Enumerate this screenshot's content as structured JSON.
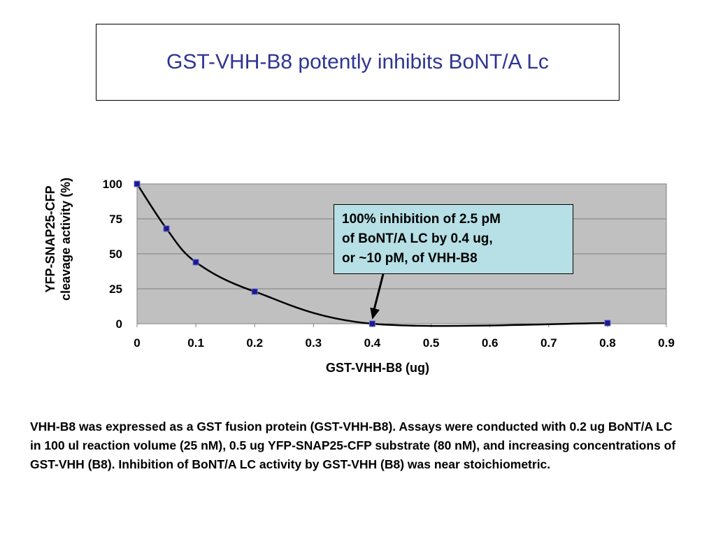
{
  "slide": {
    "title": "GST-VHH-B8 potently inhibits BoNT/A Lc",
    "caption": "VHH-B8 was expressed as a GST fusion protein (GST-VHH-B8). Assays were conducted with 0.2 ug BoNT/A LC in 100 ul reaction volume  (25 nM), 0.5 ug YFP-SNAP25-CFP substrate (80 nM), and increasing concentrations of GST-VHH (B8). Inhibition of BoNT/A LC activity by GST-VHH (B8) was near stoichiometric."
  },
  "chart_data": {
    "type": "scatter",
    "title": "",
    "xlabel": "GST-VHH-B8 (ug)",
    "ylabel": [
      "YFP-SNAP25-CFP",
      "cleavage activity (%)"
    ],
    "xlim": [
      0,
      0.9
    ],
    "ylim": [
      0,
      100
    ],
    "xticks": [
      "0",
      "0.1",
      "0.2",
      "0.3",
      "0.4",
      "0.5",
      "0.6",
      "0.7",
      "0.8",
      "0.9"
    ],
    "yticks": [
      "0",
      "25",
      "50",
      "75",
      "100"
    ],
    "grid": "horizontal",
    "series": [
      {
        "x": [
          0,
          0.05,
          0.1,
          0.2,
          0.4,
          0.8
        ],
        "y": [
          100,
          68,
          44,
          23,
          0,
          0.5
        ],
        "color": "#1a1a8c",
        "line_color": "#000000",
        "smooth": true
      }
    ],
    "annotation": {
      "text": [
        "100% inhibition of 2.5 pM",
        "of BoNT/A LC by 0.4 ug,",
        "or ~10 pM, of VHH-B8"
      ],
      "arrow_to": {
        "x": 0.4,
        "y": 0
      }
    },
    "plot_background": "#c0c0c0"
  }
}
